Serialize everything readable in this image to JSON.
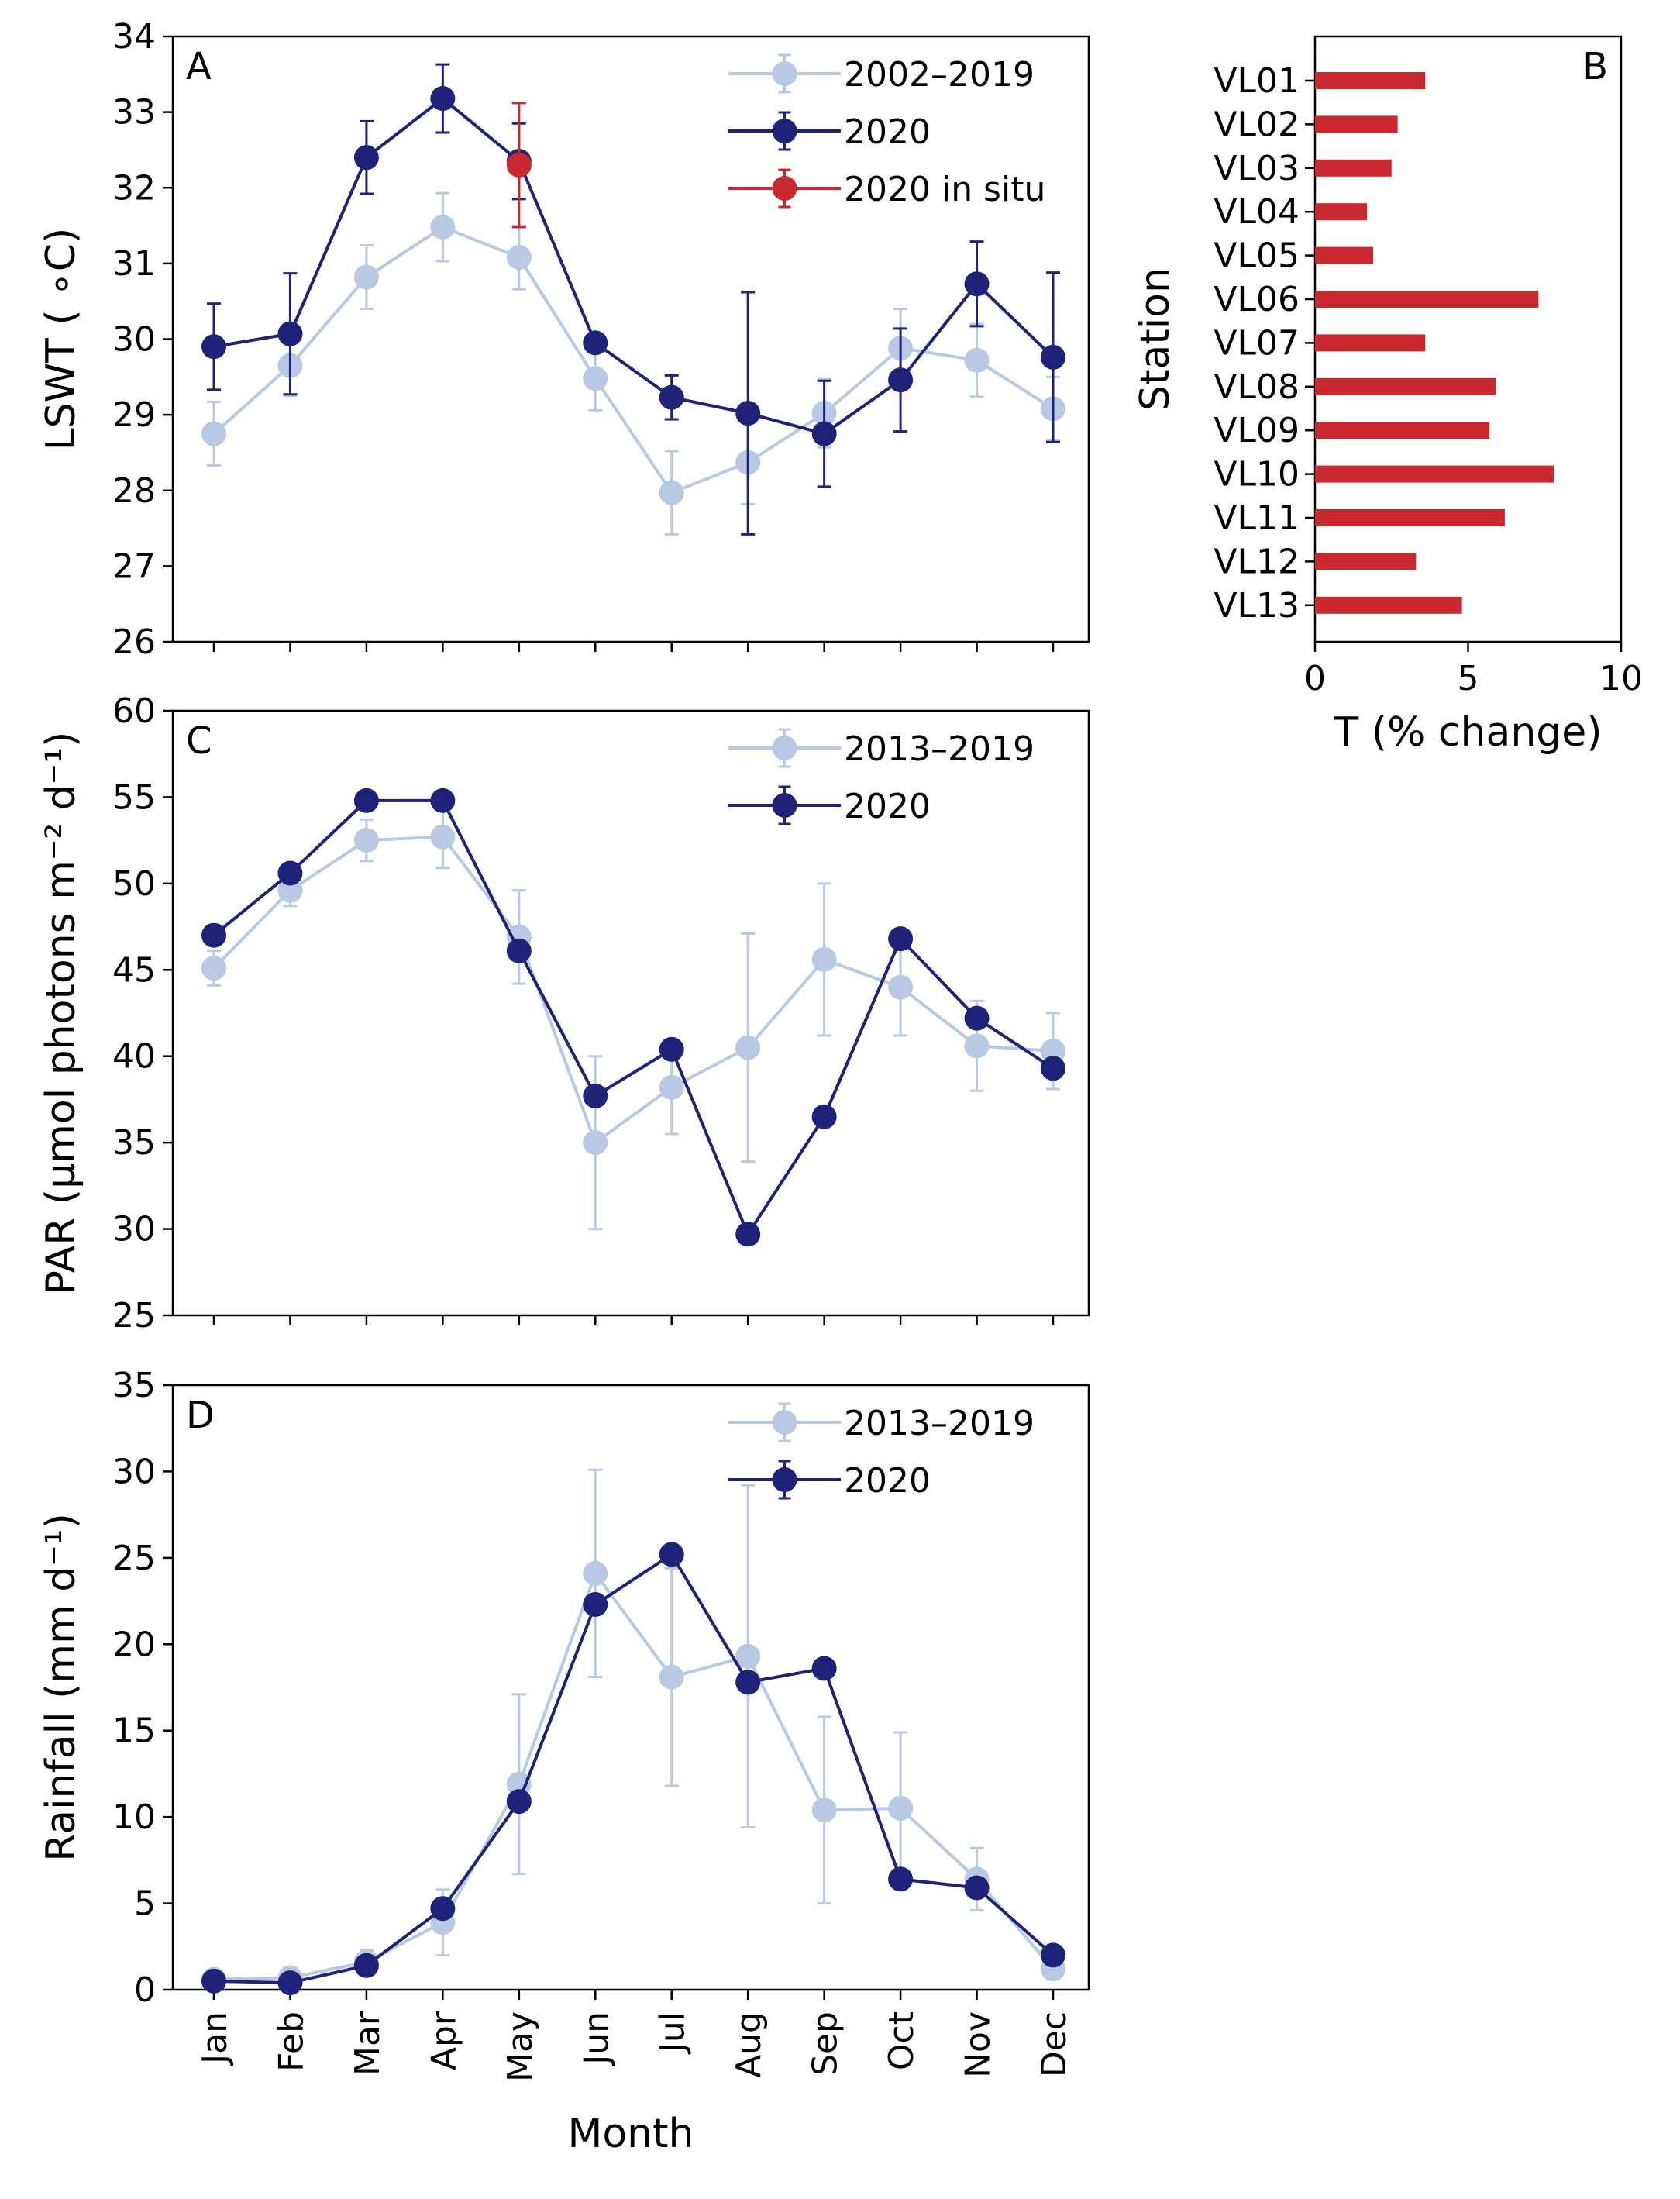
{
  "colors": {
    "light_series": "#b7c9e3",
    "dark_series": "#1f2279",
    "in_situ": "#c8282e",
    "bar": "#c8282e",
    "axis": "#000000"
  },
  "months": [
    "Jan",
    "Feb",
    "Mar",
    "Apr",
    "May",
    "Jun",
    "Jul",
    "Aug",
    "Sep",
    "Oct",
    "Nov",
    "Dec"
  ],
  "x_axis_title": "Month",
  "chart_data": [
    {
      "panel": "A",
      "type": "line",
      "ylabel": "LSWT ( ∘C)",
      "ylim": [
        26,
        34
      ],
      "yticks": [
        26,
        27,
        28,
        29,
        30,
        31,
        32,
        33,
        34
      ],
      "legend_position": "top-right",
      "series": [
        {
          "name": "2002–2019",
          "color_key": "light_series",
          "values": [
            28.75,
            29.65,
            30.82,
            31.48,
            31.08,
            29.48,
            27.97,
            28.37,
            29.02,
            29.88,
            29.72,
            29.08
          ],
          "errors": [
            0.42,
            0.4,
            0.42,
            0.45,
            0.42,
            0.42,
            0.55,
            0.55,
            0.45,
            0.52,
            0.48,
            0.42
          ]
        },
        {
          "name": "2020",
          "color_key": "dark_series",
          "values": [
            29.9,
            30.07,
            32.4,
            33.18,
            32.35,
            29.95,
            29.23,
            29.02,
            28.75,
            29.46,
            30.73,
            29.76
          ],
          "errors": [
            0.57,
            0.8,
            0.48,
            0.45,
            0.5,
            0.1,
            0.29,
            1.6,
            0.7,
            0.68,
            0.56,
            1.12
          ]
        },
        {
          "name": "2020 in situ",
          "color_key": "in_situ",
          "values": [
            null,
            null,
            null,
            null,
            32.3,
            null,
            null,
            null,
            null,
            null,
            null,
            null
          ],
          "errors": [
            null,
            null,
            null,
            null,
            0.82,
            null,
            null,
            null,
            null,
            null,
            null,
            null
          ]
        }
      ]
    },
    {
      "panel": "B",
      "type": "bar",
      "orientation": "horizontal",
      "ylabel": "Station",
      "xlabel": "T (% change)",
      "xlim": [
        0,
        10
      ],
      "xticks": [
        0,
        5,
        10
      ],
      "categories": [
        "VL01",
        "VL02",
        "VL03",
        "VL04",
        "VL05",
        "VL06",
        "VL07",
        "VL08",
        "VL09",
        "VL10",
        "VL11",
        "VL12",
        "VL13"
      ],
      "values": [
        3.6,
        2.7,
        2.5,
        1.7,
        1.9,
        7.3,
        3.6,
        5.9,
        5.7,
        7.8,
        6.2,
        3.3,
        4.8
      ]
    },
    {
      "panel": "C",
      "type": "line",
      "ylabel": "PAR (μmol photons m⁻² d⁻¹)",
      "ylim": [
        25,
        60
      ],
      "yticks": [
        25,
        30,
        35,
        40,
        45,
        50,
        55,
        60
      ],
      "legend_position": "top-right",
      "series": [
        {
          "name": "2013–2019",
          "color_key": "light_series",
          "values": [
            45.1,
            49.6,
            52.5,
            52.7,
            46.9,
            35.0,
            38.2,
            40.5,
            45.6,
            44.0,
            40.6,
            40.3
          ],
          "errors": [
            1.0,
            0.9,
            1.2,
            1.8,
            2.7,
            5.0,
            2.7,
            6.6,
            4.4,
            2.8,
            2.6,
            2.2
          ]
        },
        {
          "name": "2020",
          "color_key": "dark_series",
          "values": [
            47.0,
            50.6,
            54.8,
            54.8,
            46.1,
            37.7,
            40.4,
            29.7,
            36.5,
            46.8,
            42.2,
            39.3
          ],
          "errors": [
            null,
            null,
            null,
            null,
            null,
            null,
            null,
            null,
            null,
            null,
            null,
            null
          ]
        }
      ]
    },
    {
      "panel": "D",
      "type": "line",
      "ylabel": "Rainfall (mm d⁻¹)",
      "xlabel": "Month",
      "ylim": [
        0,
        35
      ],
      "yticks": [
        0,
        5,
        10,
        15,
        20,
        25,
        30,
        35
      ],
      "legend_position": "top-right",
      "series": [
        {
          "name": "2013–2019",
          "color_key": "light_series",
          "values": [
            0.6,
            0.7,
            1.6,
            3.9,
            11.9,
            24.1,
            18.1,
            19.3,
            10.4,
            10.5,
            6.4,
            1.2
          ],
          "errors": [
            0.3,
            0.4,
            0.7,
            1.9,
            5.2,
            6.0,
            6.3,
            9.9,
            5.4,
            4.4,
            1.8,
            0.6
          ]
        },
        {
          "name": "2020",
          "color_key": "dark_series",
          "values": [
            0.5,
            0.4,
            1.4,
            4.7,
            10.9,
            22.3,
            25.2,
            17.8,
            18.6,
            6.4,
            5.9,
            2.0
          ],
          "errors": [
            null,
            null,
            null,
            null,
            null,
            null,
            null,
            null,
            null,
            null,
            null,
            null
          ]
        }
      ]
    }
  ]
}
